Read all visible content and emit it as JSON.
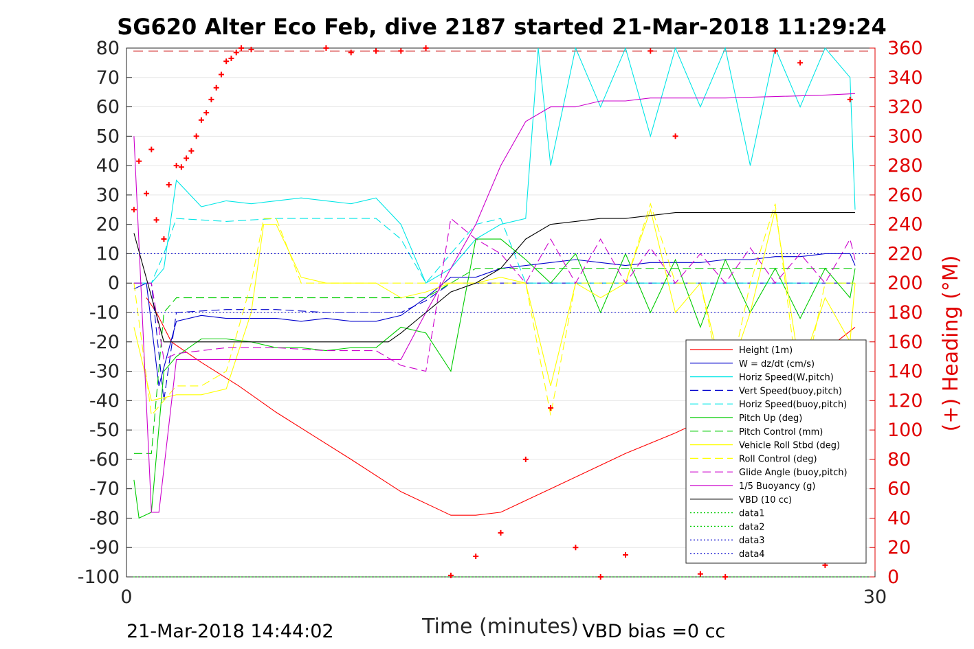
{
  "chart_data": {
    "type": "line",
    "title": "SG620 Alter Eco Feb, dive 2187 started 21-Mar-2018 11:29:24",
    "xlabel": "Time (minutes)",
    "ylabel_left": "",
    "ylabel_right": "(+) Heading (°M)",
    "xlim": [
      0,
      30
    ],
    "ylim_left": [
      -100,
      80
    ],
    "ylim_right": [
      0,
      360
    ],
    "x_ticks": [
      "0",
      "30"
    ],
    "y_ticks_left": [
      "80",
      "70",
      "60",
      "50",
      "40",
      "30",
      "20",
      "10",
      "0",
      "-10",
      "-20",
      "-30",
      "-40",
      "-50",
      "-60",
      "-70",
      "-80",
      "-90",
      "-100"
    ],
    "y_ticks_right": [
      "360",
      "340",
      "320",
      "300",
      "280",
      "260",
      "240",
      "220",
      "200",
      "180",
      "160",
      "140",
      "120",
      "100",
      "80",
      "60",
      "40",
      "20",
      "0"
    ],
    "grid": true,
    "legend_position": "bottom-right",
    "footer_left": "21-Mar-2018 14:44:02",
    "footer_right": "VBD bias =0 cc",
    "series": [
      {
        "name": "Height (1m)",
        "color": "#ff0000",
        "style": "solid",
        "x": [
          0.8,
          1.2,
          1.8,
          3,
          4.5,
          6,
          7.5,
          9,
          11,
          13,
          14,
          15,
          16,
          17,
          18,
          20,
          22,
          24,
          26,
          28,
          29.2
        ],
        "y": [
          -5,
          -10,
          -20,
          -27,
          -35,
          -44,
          -52,
          -60,
          -71,
          -79,
          -79,
          -78,
          -74,
          -70,
          -66,
          -58,
          -51,
          -43,
          -34,
          -23,
          -15
        ]
      },
      {
        "name": "W = dz/dt (cm/s)",
        "color": "#0000cc",
        "style": "solid",
        "x": [
          0.3,
          0.8,
          1.3,
          2,
          3,
          4,
          5,
          6,
          7,
          8,
          9,
          10,
          11,
          12,
          13,
          14,
          15,
          16,
          17,
          18,
          19,
          20,
          21,
          22,
          23,
          24,
          25,
          26,
          27,
          28,
          29,
          29.2
        ],
        "y": [
          -2,
          0,
          -35,
          -13,
          -11,
          -12,
          -12,
          -12,
          -13,
          -12,
          -13,
          -13,
          -11,
          -5,
          2,
          2,
          5,
          6,
          7,
          8,
          7,
          6,
          7,
          7,
          7,
          8,
          8,
          9,
          9,
          10,
          10,
          6
        ]
      },
      {
        "name": "Horiz Speed(W,pitch)",
        "color": "#00e6e6",
        "style": "solid",
        "x": [
          0.3,
          1,
          1.5,
          2,
          3,
          4,
          5,
          6,
          7,
          8,
          9,
          10,
          11,
          12,
          13,
          14,
          15,
          16,
          16.5,
          17,
          18,
          19,
          20,
          21,
          22,
          23,
          24,
          25,
          26,
          27,
          28,
          29,
          29.2
        ],
        "y": [
          0,
          0,
          5,
          35,
          26,
          28,
          27,
          28,
          29,
          28,
          27,
          29,
          20,
          0,
          5,
          15,
          20,
          22,
          80,
          40,
          80,
          60,
          80,
          50,
          80,
          60,
          80,
          40,
          80,
          60,
          80,
          70,
          25
        ]
      },
      {
        "name": "Vert Speed(buoy,pitch)",
        "color": "#0000cc",
        "style": "dashed",
        "x": [
          0.3,
          1,
          1.5,
          2,
          4,
          6,
          8,
          10,
          11,
          12,
          13,
          14,
          15,
          16,
          17,
          18,
          20,
          22,
          24,
          26,
          28,
          29.2
        ],
        "y": [
          0,
          0,
          -40,
          -10,
          -9,
          -9,
          -10,
          -10,
          -10,
          -6,
          0,
          0,
          0,
          0,
          0,
          0,
          0,
          0,
          0,
          0,
          0,
          0
        ]
      },
      {
        "name": "Horiz Speed(buoy,pitch)",
        "color": "#00e6e6",
        "style": "dashed",
        "x": [
          0.3,
          1,
          1.5,
          2,
          4,
          6,
          8,
          10,
          11,
          12,
          13,
          14,
          15,
          16,
          17,
          18,
          20,
          22,
          24,
          26,
          28,
          29.2
        ],
        "y": [
          0,
          0,
          10,
          22,
          21,
          22,
          22,
          22,
          15,
          0,
          10,
          20,
          22,
          0,
          0,
          0,
          0,
          0,
          0,
          0,
          0,
          0
        ]
      },
      {
        "name": "Pitch Up (deg)",
        "color": "#00cc00",
        "style": "solid",
        "x": [
          0.3,
          0.5,
          1,
          1.5,
          2,
          3,
          4,
          5,
          6,
          7,
          8,
          9,
          10,
          11,
          12,
          13,
          14,
          15,
          16,
          17,
          18,
          19,
          20,
          21,
          22,
          23,
          24,
          25,
          26,
          27,
          28,
          29,
          29.2
        ],
        "y": [
          -67,
          -80,
          -78,
          -30,
          -25,
          -19,
          -19,
          -20,
          -22,
          -22,
          -23,
          -22,
          -22,
          -15,
          -17,
          -30,
          15,
          15,
          8,
          0,
          10,
          -10,
          10,
          -10,
          8,
          -15,
          8,
          -10,
          5,
          -12,
          5,
          -5,
          5
        ]
      },
      {
        "name": "Pitch Control (mm)",
        "color": "#00cc00",
        "style": "dashed",
        "x": [
          0.3,
          1,
          1.5,
          2,
          4,
          6,
          8,
          10,
          12,
          14,
          16,
          18,
          20,
          22,
          24,
          26,
          28,
          29.2
        ],
        "y": [
          -58,
          -58,
          -10,
          -5,
          -5,
          -5,
          -5,
          -5,
          -5,
          5,
          5,
          5,
          5,
          5,
          5,
          5,
          5,
          5
        ]
      },
      {
        "name": "Vehicle Roll Stbd (deg)",
        "color": "#ffff00",
        "style": "solid",
        "x": [
          0.3,
          1,
          2,
          3,
          4,
          5,
          5.5,
          6,
          7,
          8,
          9,
          10,
          11,
          12,
          13,
          14,
          15,
          16,
          17,
          18,
          19,
          20,
          21,
          22,
          23,
          24,
          25,
          26,
          27,
          28,
          29,
          29.2
        ],
        "y": [
          -15,
          -40,
          -38,
          -38,
          -36,
          -10,
          20,
          20,
          2,
          0,
          0,
          0,
          -5,
          -3,
          0,
          0,
          2,
          0,
          -35,
          0,
          -5,
          0,
          25,
          -10,
          0,
          -35,
          -10,
          25,
          -30,
          -5,
          -20,
          0
        ]
      },
      {
        "name": "Roll Control (deg)",
        "color": "#ffff00",
        "style": "dashed",
        "x": [
          0.3,
          1,
          2,
          3,
          4,
          5,
          5.5,
          6,
          7,
          8,
          9,
          10,
          11,
          12,
          13,
          14,
          15,
          16,
          17,
          18,
          19,
          20,
          21,
          22,
          23,
          24,
          25,
          26,
          27,
          28,
          29.2
        ],
        "y": [
          0,
          -45,
          -35,
          -35,
          -30,
          0,
          22,
          22,
          0,
          0,
          0,
          0,
          0,
          0,
          0,
          0,
          0,
          0,
          -45,
          0,
          0,
          0,
          27,
          0,
          0,
          -40,
          0,
          27,
          -40,
          0,
          0
        ]
      },
      {
        "name": "Glide Angle (buoy,pitch)",
        "color": "#cc00cc",
        "style": "dashed",
        "x": [
          0.3,
          1,
          1.5,
          2,
          4,
          6,
          8,
          10,
          11,
          12,
          13,
          14,
          15,
          16,
          17,
          18,
          19,
          20,
          21,
          22,
          23,
          24,
          25,
          26,
          27,
          28,
          29,
          29.2
        ],
        "y": [
          0,
          0,
          -26,
          -24,
          -22,
          -22,
          -23,
          -23,
          -28,
          -30,
          22,
          15,
          10,
          0,
          15,
          0,
          15,
          0,
          12,
          0,
          10,
          0,
          12,
          0,
          10,
          0,
          15,
          8
        ]
      },
      {
        "name": "1/5 Buoyancy (g)",
        "color": "#cc00cc",
        "style": "solid",
        "x": [
          0.3,
          1,
          1.3,
          2,
          4,
          6,
          8,
          10,
          11,
          12,
          13,
          14,
          15,
          16,
          17,
          18,
          19,
          20,
          21,
          22,
          24,
          26,
          28,
          29.2
        ],
        "y": [
          50,
          -78,
          -78,
          -26,
          -26,
          -26,
          -26,
          -26,
          -26,
          -10,
          5,
          20,
          40,
          55,
          60,
          60,
          62,
          62,
          63,
          63,
          63,
          63.5,
          64,
          64.5
        ]
      },
      {
        "name": "VBD (10 cc)",
        "color": "#000000",
        "style": "solid",
        "x": [
          0.3,
          1.5,
          2,
          4,
          6,
          8,
          10,
          10.5,
          11,
          12,
          13,
          14,
          15,
          16,
          17,
          18,
          19,
          20,
          21,
          22,
          24,
          26,
          28,
          29.2
        ],
        "y": [
          17,
          -20,
          -20,
          -20,
          -20,
          -20,
          -20,
          -20,
          -17,
          -10,
          -3,
          0,
          5,
          15,
          20,
          21,
          22,
          22,
          23,
          24,
          24,
          24,
          24,
          24
        ]
      },
      {
        "name": "data1",
        "color": "#00cc00",
        "style": "dotted",
        "x": [
          0,
          30
        ],
        "y": [
          -100,
          -100
        ]
      },
      {
        "name": "data2",
        "color": "#00cc00",
        "style": "dotted",
        "x": [
          0,
          30
        ],
        "y": [
          -100,
          -100
        ]
      },
      {
        "name": "data3",
        "color": "#0000cc",
        "style": "dotted",
        "x": [
          0,
          30
        ],
        "y": [
          10,
          10
        ]
      },
      {
        "name": "data4",
        "color": "#0000cc",
        "style": "dotted",
        "x": [
          0,
          30
        ],
        "y": [
          -10,
          -10
        ]
      }
    ],
    "reference_line_right": {
      "color": "#cc0000",
      "style": "dashed",
      "value": 358
    },
    "heading_points": {
      "color": "#ff0000",
      "marker": "+",
      "x": [
        0.3,
        0.5,
        0.8,
        1,
        1.2,
        1.5,
        1.7,
        2,
        2.2,
        2.4,
        2.6,
        2.8,
        3,
        3.2,
        3.4,
        3.6,
        3.8,
        4,
        4.2,
        4.4,
        4.6,
        5,
        8,
        9,
        10,
        11,
        12,
        13,
        14,
        15,
        16,
        17,
        18,
        19,
        20,
        21,
        22,
        23,
        24,
        25,
        26,
        27,
        28,
        29
      ],
      "y": [
        250,
        283,
        261,
        291,
        243,
        230,
        267,
        280,
        279,
        285,
        290,
        300,
        311,
        316,
        325,
        333,
        342,
        351,
        353,
        357,
        360,
        359,
        360,
        357,
        358,
        358,
        360,
        1,
        14,
        30,
        80,
        115,
        20,
        0,
        15,
        358,
        300,
        2,
        0,
        15,
        358,
        350,
        8,
        325
      ]
    }
  }
}
